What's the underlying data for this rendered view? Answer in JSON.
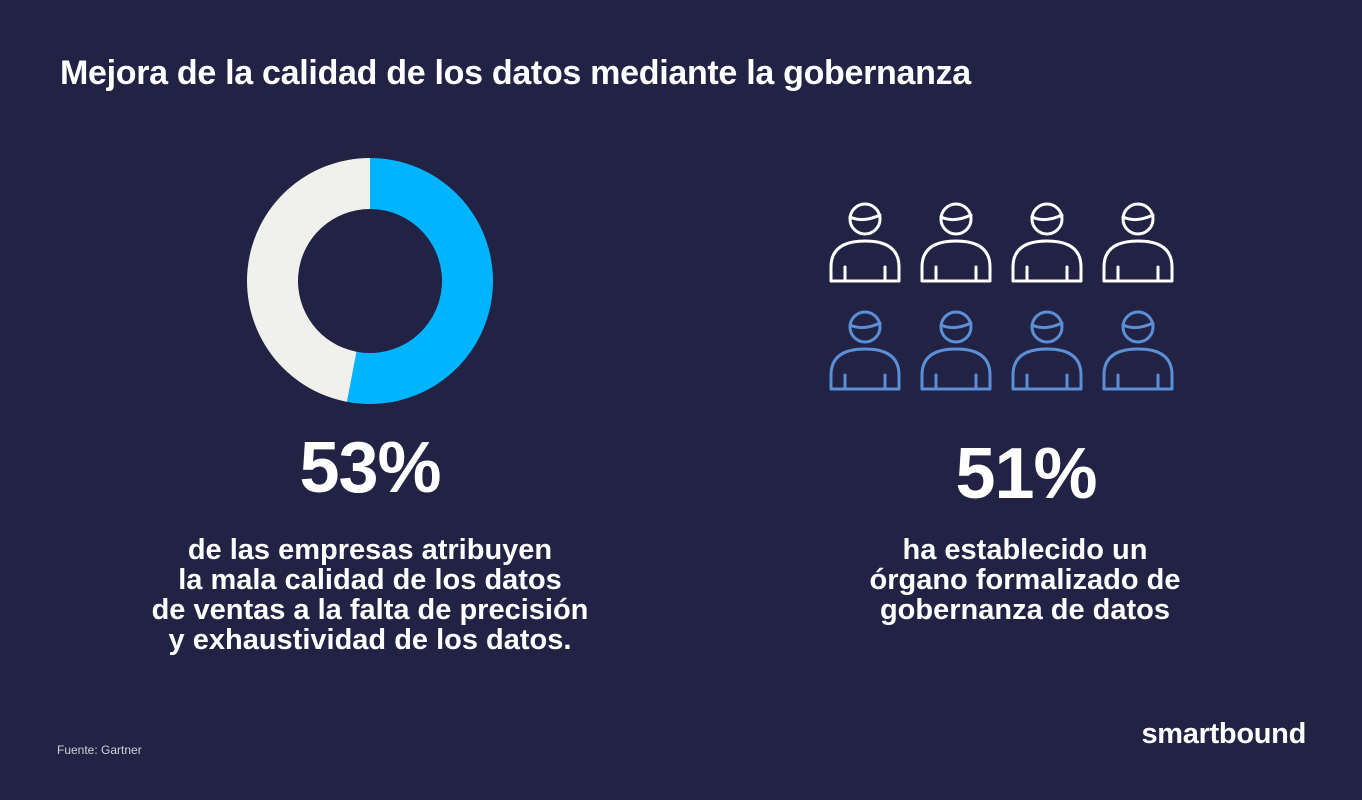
{
  "title": "Mejora de la calidad de los datos mediante la gobernanza",
  "chart_data": [
    {
      "type": "pie",
      "categories": [
        "",
        ""
      ],
      "values": [
        53,
        47
      ],
      "colors": [
        "#00b4ff",
        "#f0f0ec"
      ],
      "hole": true,
      "stat_label": "53%",
      "description_lines": [
        "de las empresas atribuyen",
        "la mala calidad de los datos",
        "de ventas a la falta de precisión",
        "y exhaustividad de los datos."
      ]
    },
    {
      "type": "pictogram",
      "rows": 2,
      "columns": 4,
      "rows_colors": [
        "#ffffff",
        "#5b8fd6"
      ],
      "icon": "person-outline-icon",
      "stat_label": "51%",
      "description_lines": [
        "ha establecido un",
        "órgano formalizado de",
        "gobernanza de datos"
      ]
    }
  ],
  "source": "Fuente: Gartner",
  "brand": "smartbound",
  "colors": {
    "background": "#222244",
    "accent": "#00b4ff",
    "neutral": "#f0f0ec",
    "icon_blue": "#5b8fd6",
    "text": "#ffffff"
  }
}
